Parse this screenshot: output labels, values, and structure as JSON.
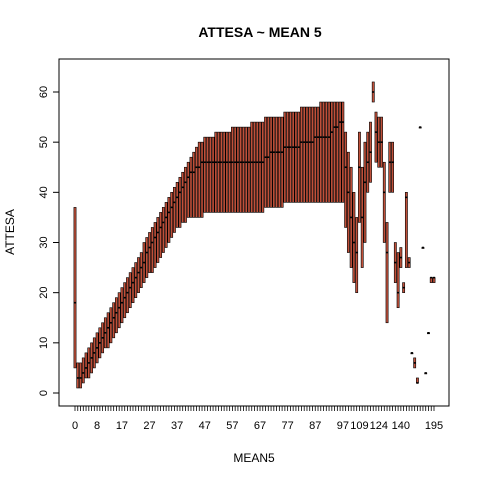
{
  "chart_data": {
    "type": "boxplot",
    "title": "ATTESA ~ MEAN 5",
    "xlabel": "MEAN5",
    "ylabel": "ATTESA",
    "ylim": [
      -2,
      66
    ],
    "y_ticks": [
      0,
      10,
      20,
      30,
      40,
      50,
      60
    ],
    "x_tick_labels": [
      "0",
      "8",
      "17",
      "27",
      "37",
      "47",
      "57",
      "67",
      "77",
      "87",
      "97",
      "109",
      "124",
      "140",
      "195"
    ],
    "box_fill": "#c0503a",
    "x": [
      0,
      1,
      2,
      3,
      4,
      5,
      6,
      7,
      8,
      9,
      10,
      11,
      12,
      13,
      14,
      15,
      16,
      17,
      18,
      19,
      20,
      21,
      22,
      23,
      24,
      25,
      26,
      27,
      28,
      29,
      30,
      31,
      32,
      33,
      34,
      35,
      36,
      37,
      38,
      39,
      40,
      41,
      42,
      43,
      44,
      45,
      46,
      47,
      48,
      49,
      50,
      51,
      52,
      53,
      54,
      55,
      56,
      57,
      58,
      59,
      60,
      61,
      62,
      63,
      64,
      65,
      66,
      67,
      68,
      69,
      70,
      71,
      72,
      73,
      74,
      75,
      76,
      77,
      78,
      79,
      80,
      81,
      82,
      83,
      84,
      85,
      86,
      87,
      88,
      89,
      90,
      91,
      92,
      93,
      94,
      95,
      96,
      97,
      99,
      101,
      103,
      105,
      107,
      109,
      111,
      113,
      115,
      117,
      120,
      122,
      124,
      126,
      128,
      130,
      132,
      134,
      136,
      138,
      140,
      142,
      145,
      150,
      155,
      160,
      165,
      170,
      175,
      180,
      185,
      190,
      195
    ],
    "medians": [
      18,
      3,
      3,
      4,
      5,
      6,
      7,
      8,
      9,
      10,
      11,
      12,
      13,
      14,
      15,
      16,
      17,
      18,
      19,
      20,
      21,
      22,
      23,
      24,
      25,
      26,
      28,
      29,
      30,
      31,
      32,
      33,
      34,
      35,
      36,
      37,
      38,
      39,
      40,
      41,
      42,
      43,
      44,
      44,
      45,
      45,
      46,
      46,
      46,
      46,
      46,
      46,
      46,
      46,
      46,
      46,
      46,
      46,
      46,
      46,
      46,
      46,
      46,
      46,
      46,
      46,
      46,
      46,
      46,
      47,
      47,
      48,
      48,
      48,
      48,
      48,
      49,
      49,
      49,
      49,
      49,
      49,
      50,
      50,
      50,
      50,
      50,
      51,
      51,
      51,
      51,
      51,
      51,
      52,
      53,
      53,
      54,
      54,
      45,
      40,
      35,
      30,
      28,
      45,
      35,
      42,
      46,
      48,
      60,
      52,
      50,
      50,
      40,
      28,
      46,
      46,
      26,
      20,
      27,
      21,
      39,
      26,
      8,
      6,
      2,
      53,
      29,
      4,
      12,
      23,
      23
    ],
    "q1": [
      5,
      1,
      1,
      2,
      3,
      3,
      4,
      5,
      6,
      7,
      8,
      9,
      9,
      10,
      11,
      12,
      13,
      14,
      15,
      16,
      17,
      18,
      19,
      20,
      21,
      22,
      23,
      24,
      24,
      25,
      26,
      27,
      28,
      29,
      30,
      31,
      32,
      33,
      33,
      34,
      34,
      35,
      35,
      35,
      35,
      35,
      35,
      36,
      36,
      36,
      36,
      36,
      36,
      36,
      36,
      36,
      36,
      36,
      36,
      36,
      36,
      36,
      36,
      36,
      36,
      36,
      36,
      36,
      36,
      37,
      37,
      37,
      37,
      37,
      37,
      37,
      38,
      38,
      38,
      38,
      38,
      38,
      38,
      38,
      38,
      38,
      38,
      38,
      38,
      38,
      38,
      38,
      38,
      38,
      38,
      38,
      38,
      38,
      33,
      28,
      25,
      22,
      20,
      34,
      25,
      30,
      40,
      42,
      58,
      46,
      45,
      45,
      30,
      14,
      40,
      40,
      22,
      17,
      25,
      20,
      25,
      25,
      8,
      5,
      2,
      53,
      29,
      4,
      12,
      22,
      22
    ],
    "q3": [
      37,
      6,
      6,
      7,
      8,
      9,
      10,
      11,
      12,
      13,
      14,
      15,
      16,
      17,
      18,
      19,
      20,
      21,
      22,
      23,
      24,
      25,
      26,
      27,
      28,
      30,
      31,
      32,
      33,
      34,
      35,
      36,
      37,
      38,
      39,
      40,
      41,
      42,
      43,
      44,
      45,
      46,
      47,
      48,
      49,
      50,
      50,
      51,
      51,
      51,
      51,
      52,
      52,
      52,
      52,
      52,
      52,
      53,
      53,
      53,
      53,
      53,
      53,
      53,
      54,
      54,
      54,
      54,
      54,
      55,
      55,
      55,
      55,
      55,
      55,
      55,
      56,
      56,
      56,
      56,
      56,
      56,
      57,
      57,
      57,
      57,
      57,
      57,
      57,
      58,
      58,
      58,
      58,
      58,
      58,
      58,
      58,
      58,
      52,
      48,
      45,
      40,
      35,
      52,
      45,
      50,
      52,
      54,
      62,
      56,
      55,
      55,
      46,
      34,
      50,
      50,
      30,
      28,
      29,
      22,
      40,
      27,
      8,
      7,
      3,
      53,
      29,
      4,
      12,
      23,
      23
    ]
  }
}
